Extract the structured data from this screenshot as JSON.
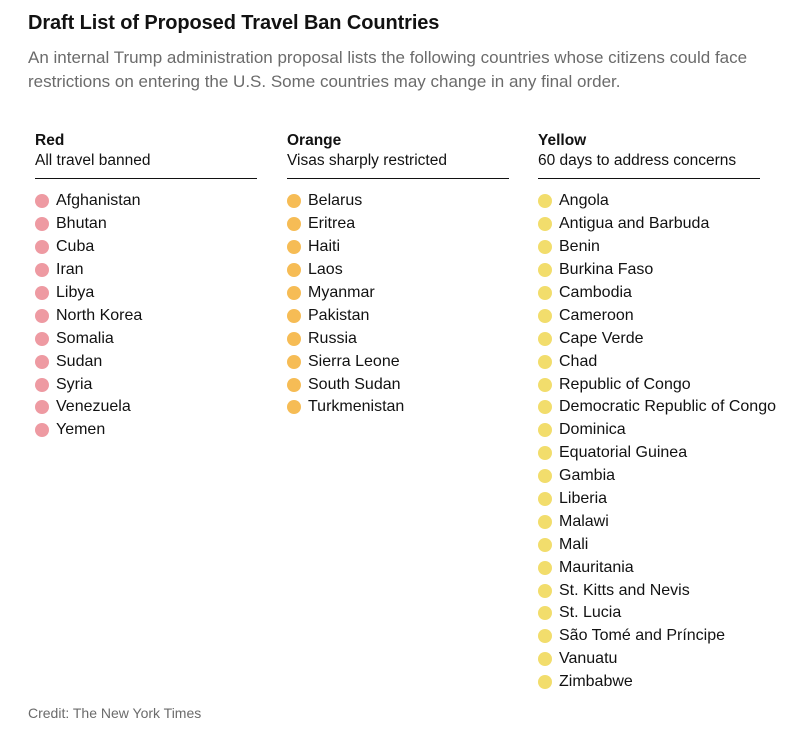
{
  "title": "Draft List of Proposed Travel Ban Countries",
  "subtitle": "An internal Trump administration proposal lists the following countries whose citizens could face restrictions on entering the U.S. Some countries may change in any final order.",
  "credit": "Credit: The New York Times",
  "columns": [
    {
      "name": "Red",
      "description": "All travel banned",
      "color": "#ee9aa2",
      "countries": [
        "Afghanistan",
        "Bhutan",
        "Cuba",
        "Iran",
        "Libya",
        "North Korea",
        "Somalia",
        "Sudan",
        "Syria",
        "Venezuela",
        "Yemen"
      ]
    },
    {
      "name": "Orange",
      "description": "Visas sharply restricted",
      "color": "#f6bc55",
      "countries": [
        "Belarus",
        "Eritrea",
        "Haiti",
        "Laos",
        "Myanmar",
        "Pakistan",
        "Russia",
        "Sierra Leone",
        "South Sudan",
        "Turkmenistan"
      ]
    },
    {
      "name": "Yellow",
      "description": "60 days to address concerns",
      "color": "#f2dd6c",
      "countries": [
        "Angola",
        "Antigua and Barbuda",
        "Benin",
        "Burkina Faso",
        "Cambodia",
        "Cameroon",
        "Cape Verde",
        "Chad",
        "Republic of Congo",
        "Democratic Republic of Congo",
        "Dominica",
        "Equatorial Guinea",
        "Gambia",
        "Liberia",
        "Malawi",
        "Mali",
        "Mauritania",
        "St. Kitts and Nevis",
        "St. Lucia",
        "São Tomé and Príncipe",
        "Vanuatu",
        "Zimbabwe"
      ]
    }
  ]
}
